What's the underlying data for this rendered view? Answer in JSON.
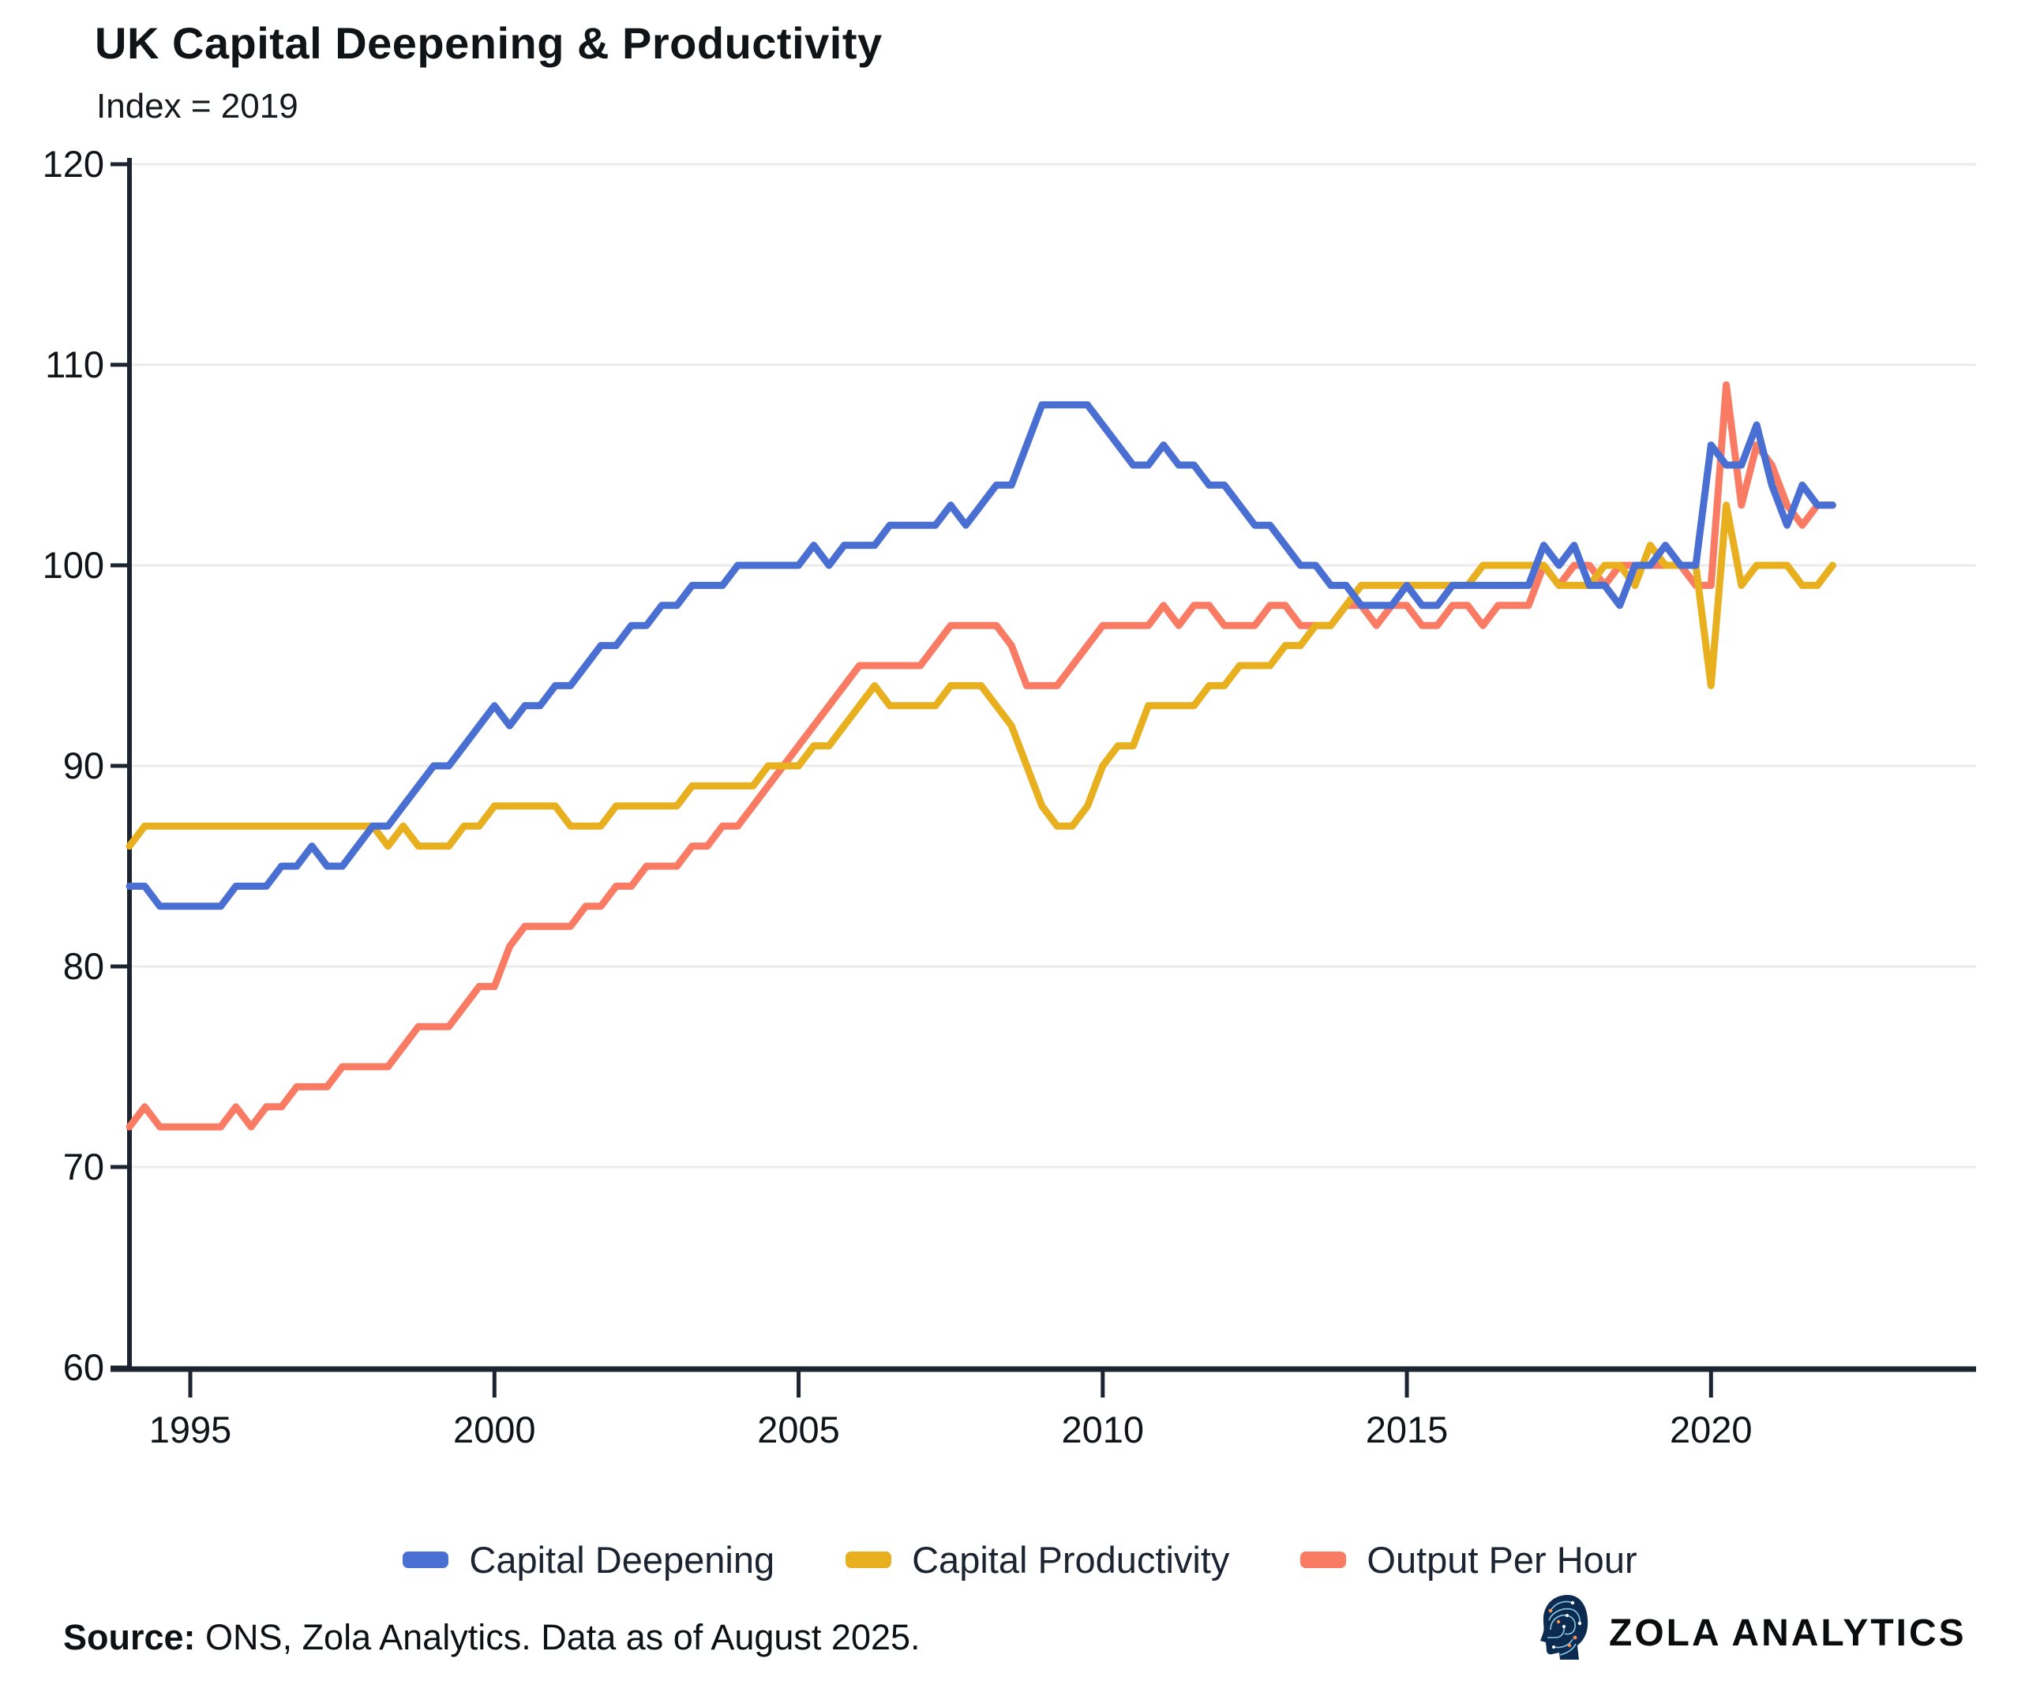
{
  "header": {
    "title": "UK Capital Deepening & Productivity",
    "subtitle": "Index = 2019"
  },
  "chart_data": {
    "type": "line",
    "title": "UK Capital Deepening & Productivity",
    "subtitle": "Index = 2019",
    "x_start_year": 1994.0,
    "x_step_years": 0.25,
    "x_end_year": 2022.0,
    "xticks": [
      "1995",
      "2000",
      "2005",
      "2010",
      "2015",
      "2020"
    ],
    "yticks": [
      "60",
      "70",
      "80",
      "90",
      "100",
      "110",
      "120"
    ],
    "ylim": [
      60,
      120
    ],
    "xlabel": "",
    "ylabel": "",
    "grid": "horizontal",
    "legend_position": "bottom-center",
    "series": [
      {
        "name": "Capital Deepening",
        "color": "#4a6fd2",
        "values": [
          84,
          84,
          83,
          83,
          83,
          83,
          83,
          84,
          84,
          84,
          85,
          85,
          86,
          85,
          85,
          86,
          87,
          87,
          88,
          89,
          90,
          90,
          91,
          92,
          93,
          92,
          93,
          93,
          94,
          94,
          95,
          96,
          96,
          97,
          97,
          98,
          98,
          99,
          99,
          99,
          100,
          100,
          100,
          100,
          100,
          101,
          100,
          101,
          101,
          101,
          102,
          102,
          102,
          102,
          103,
          102,
          103,
          104,
          104,
          106,
          108,
          108,
          108,
          108,
          107,
          106,
          105,
          105,
          106,
          105,
          105,
          104,
          104,
          103,
          102,
          102,
          101,
          100,
          100,
          99,
          99,
          98,
          98,
          98,
          99,
          98,
          98,
          99,
          99,
          99,
          99,
          99,
          99,
          101,
          100,
          101,
          99,
          99,
          98,
          100,
          100,
          101,
          100,
          100,
          106,
          105,
          105,
          107,
          104,
          102,
          104,
          103,
          103
        ]
      },
      {
        "name": "Capital Productivity",
        "color": "#e8b01e",
        "values": [
          86,
          87,
          87,
          87,
          87,
          87,
          87,
          87,
          87,
          87,
          87,
          87,
          87,
          87,
          87,
          87,
          87,
          86,
          87,
          86,
          86,
          86,
          87,
          87,
          88,
          88,
          88,
          88,
          88,
          87,
          87,
          87,
          88,
          88,
          88,
          88,
          88,
          89,
          89,
          89,
          89,
          89,
          90,
          90,
          90,
          91,
          91,
          92,
          93,
          94,
          93,
          93,
          93,
          93,
          94,
          94,
          94,
          93,
          92,
          90,
          88,
          87,
          87,
          88,
          90,
          91,
          91,
          93,
          93,
          93,
          93,
          94,
          94,
          95,
          95,
          95,
          96,
          96,
          97,
          97,
          98,
          99,
          99,
          99,
          99,
          99,
          99,
          99,
          99,
          100,
          100,
          100,
          100,
          100,
          99,
          99,
          99,
          100,
          100,
          99,
          101,
          100,
          100,
          100,
          94,
          103,
          99,
          100,
          100,
          100,
          99,
          99,
          100
        ]
      },
      {
        "name": "Output Per Hour",
        "color": "#f97b64",
        "values": [
          72,
          73,
          72,
          72,
          72,
          72,
          72,
          73,
          72,
          73,
          73,
          74,
          74,
          74,
          75,
          75,
          75,
          75,
          76,
          77,
          77,
          77,
          78,
          79,
          79,
          81,
          82,
          82,
          82,
          82,
          83,
          83,
          84,
          84,
          85,
          85,
          85,
          86,
          86,
          87,
          87,
          88,
          89,
          90,
          91,
          92,
          93,
          94,
          95,
          95,
          95,
          95,
          95,
          96,
          97,
          97,
          97,
          97,
          96,
          94,
          94,
          94,
          95,
          96,
          97,
          97,
          97,
          97,
          98,
          97,
          98,
          98,
          97,
          97,
          97,
          98,
          98,
          97,
          97,
          97,
          98,
          98,
          97,
          98,
          98,
          97,
          97,
          98,
          98,
          97,
          98,
          98,
          98,
          100,
          99,
          100,
          100,
          99,
          100,
          100,
          100,
          100,
          100,
          99,
          99,
          109,
          103,
          106,
          105,
          103,
          102,
          103,
          103
        ]
      }
    ]
  },
  "footer": {
    "source_label": "Source:",
    "source_text": " ONS, Zola Analytics. Data as of August 2025.",
    "brand": "ZOLA ANALYTICS"
  },
  "icons": {
    "brand_head_icon": "circuit-brain-head-profile"
  }
}
